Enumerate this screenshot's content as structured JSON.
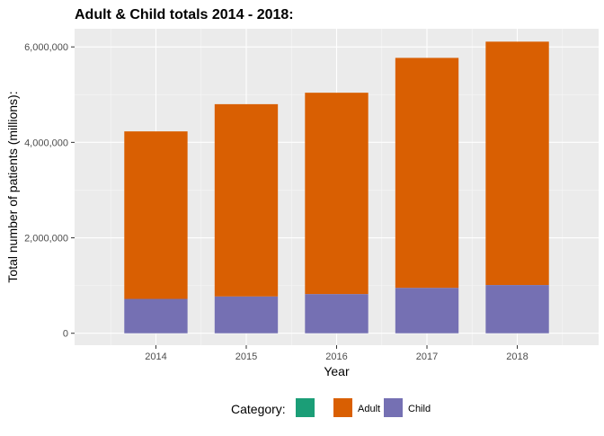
{
  "chart_data": {
    "type": "bar",
    "stacked": true,
    "title": "Adult & Child totals 2014 - 2018:",
    "xlabel": "Year",
    "ylabel": "Total number of patients (millions):",
    "categories": [
      "2014",
      "2015",
      "2016",
      "2017",
      "2018"
    ],
    "series": [
      {
        "name": "Adult",
        "color": "#D95F02",
        "values": [
          3510000,
          4030000,
          4220000,
          4820000,
          5100000
        ]
      },
      {
        "name": "Child",
        "color": "#7570B3",
        "values": [
          720000,
          770000,
          820000,
          950000,
          1010000
        ]
      }
    ],
    "totals": [
      4230000,
      4800000,
      5040000,
      5770000,
      6110000
    ],
    "ylim": [
      -250000,
      6380000
    ],
    "yticks": [
      0,
      2000000,
      4000000,
      6000000
    ],
    "ytick_labels": [
      "0",
      "2,000,000",
      "4,000,000",
      "6,000,000"
    ],
    "grid": true,
    "background": "#EBEBEB",
    "legend": {
      "position": "bottom",
      "title": "Category:",
      "entries": [
        {
          "label": "",
          "color": "#1B9E77"
        },
        {
          "label": "Adult",
          "color": "#D95F02"
        },
        {
          "label": "Child",
          "color": "#7570B3"
        }
      ]
    }
  }
}
